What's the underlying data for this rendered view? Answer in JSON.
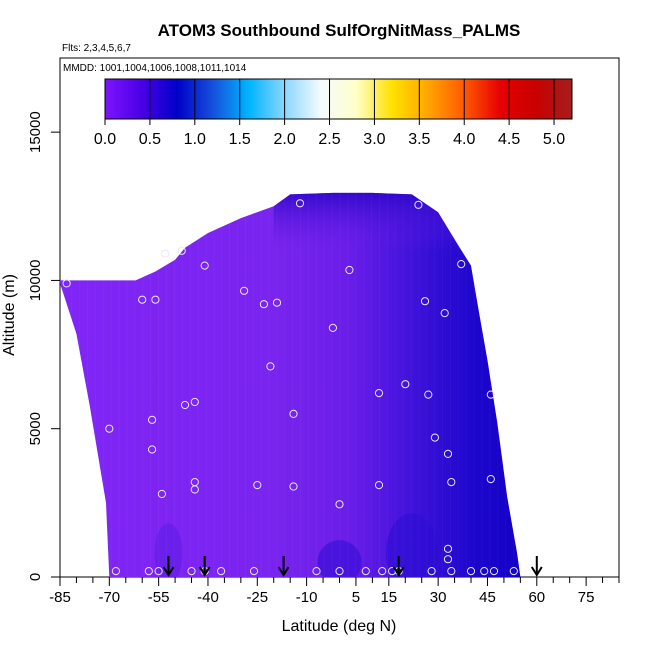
{
  "chart_data": {
    "type": "heatmap",
    "title": "ATOM3 Southbound SulfOrgNitMass_PALMS",
    "subtitle_flights": "Flts: 2,3,4,5,6,7",
    "subtitle_dates": "MMDD: 1001,1004,1006,1008,1011,1014",
    "xlabel": "Latitude (deg N)",
    "ylabel": "Altitude (m)",
    "xlim": [
      -85,
      85
    ],
    "ylim": [
      0,
      17500
    ],
    "x_ticks_labeled": [
      -85,
      -70,
      -55,
      -40,
      -25,
      -10,
      5,
      15,
      30,
      45,
      60,
      75
    ],
    "x_tick_labels": [
      "-85",
      "-70",
      "-55",
      "-40",
      "-25",
      "-10",
      "5",
      "15",
      "30",
      "45",
      "60",
      "75"
    ],
    "y_ticks": [
      0,
      5000,
      10000,
      15000
    ],
    "y_tick_labels": [
      "0",
      "5000",
      "10000",
      "15000"
    ],
    "colorbar": {
      "range": [
        0,
        5.2
      ],
      "tick_values": [
        0,
        0.5,
        1,
        1.5,
        2,
        2.5,
        3,
        3.5,
        4,
        4.5,
        5
      ],
      "tick_labels": [
        "0.0",
        "0.5",
        "1.0",
        "1.5",
        "2.0",
        "2.5",
        "3.0",
        "3.5",
        "4.0",
        "4.5",
        "5.0"
      ],
      "color_stops": [
        "#7f14ff",
        "#4b00e6",
        "#0000c8",
        "#1650dc",
        "#00b4ff",
        "#8ad6ff",
        "#f5fbff",
        "#ffffc8",
        "#ffe100",
        "#ffa500",
        "#ff5a00",
        "#e60000",
        "#c80000",
        "#a51e1e"
      ]
    },
    "field_value_typical": 0.2,
    "field_value_range": [
      0.1,
      0.8
    ],
    "sample_points": [
      {
        "lat": -83,
        "alt": 9900
      },
      {
        "lat": -70,
        "alt": 5000
      },
      {
        "lat": -68,
        "alt": 200
      },
      {
        "lat": -60,
        "alt": 9350
      },
      {
        "lat": -56,
        "alt": 9350
      },
      {
        "lat": -57,
        "alt": 5300
      },
      {
        "lat": -57,
        "alt": 4300
      },
      {
        "lat": -53,
        "alt": 10900
      },
      {
        "lat": -54,
        "alt": 2800
      },
      {
        "lat": -58,
        "alt": 200
      },
      {
        "lat": -55,
        "alt": 200
      },
      {
        "lat": -48,
        "alt": 11000
      },
      {
        "lat": -47,
        "alt": 5800
      },
      {
        "lat": -44,
        "alt": 5900
      },
      {
        "lat": -44,
        "alt": 3200
      },
      {
        "lat": -44,
        "alt": 2950
      },
      {
        "lat": -45,
        "alt": 200
      },
      {
        "lat": -41,
        "alt": 200
      },
      {
        "lat": -41,
        "alt": 10500
      },
      {
        "lat": -36,
        "alt": 200
      },
      {
        "lat": -29,
        "alt": 9650
      },
      {
        "lat": -26,
        "alt": 200
      },
      {
        "lat": -25,
        "alt": 3100
      },
      {
        "lat": -23,
        "alt": 9200
      },
      {
        "lat": -21,
        "alt": 7100
      },
      {
        "lat": -19,
        "alt": 9250
      },
      {
        "lat": -14,
        "alt": 5500
      },
      {
        "lat": -14,
        "alt": 3050
      },
      {
        "lat": -12,
        "alt": 12600
      },
      {
        "lat": -7,
        "alt": 200
      },
      {
        "lat": -2,
        "alt": 8400
      },
      {
        "lat": 0,
        "alt": 2450
      },
      {
        "lat": 0,
        "alt": 200
      },
      {
        "lat": 3,
        "alt": 10350
      },
      {
        "lat": 8,
        "alt": 200
      },
      {
        "lat": 12,
        "alt": 6200
      },
      {
        "lat": 12,
        "alt": 3100
      },
      {
        "lat": 13,
        "alt": 200
      },
      {
        "lat": 16,
        "alt": 200
      },
      {
        "lat": 18,
        "alt": 200
      },
      {
        "lat": 20,
        "alt": 6500
      },
      {
        "lat": 24,
        "alt": 12550
      },
      {
        "lat": 26,
        "alt": 9300
      },
      {
        "lat": 27,
        "alt": 6150
      },
      {
        "lat": 29,
        "alt": 4700
      },
      {
        "lat": 28,
        "alt": 200
      },
      {
        "lat": 32,
        "alt": 8900
      },
      {
        "lat": 33,
        "alt": 4150
      },
      {
        "lat": 33,
        "alt": 950
      },
      {
        "lat": 33,
        "alt": 600
      },
      {
        "lat": 34,
        "alt": 3200
      },
      {
        "lat": 34,
        "alt": 200
      },
      {
        "lat": 37,
        "alt": 10550
      },
      {
        "lat": 40,
        "alt": 200
      },
      {
        "lat": 44,
        "alt": 200
      },
      {
        "lat": 46,
        "alt": 6150
      },
      {
        "lat": 46,
        "alt": 3300
      },
      {
        "lat": 47,
        "alt": 200
      },
      {
        "lat": 53,
        "alt": 200
      }
    ],
    "arrow_latitudes": [
      -52,
      -41,
      -17,
      18,
      60
    ]
  }
}
